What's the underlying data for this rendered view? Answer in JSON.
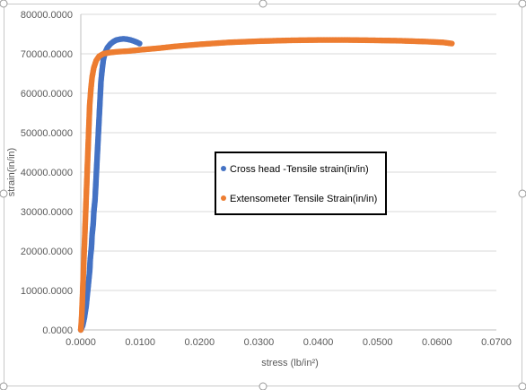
{
  "chart_data": {
    "type": "scatter",
    "title": "",
    "xlabel": "stress (lb/in²)",
    "ylabel": "strain(in/in)",
    "xlim": [
      0,
      0.07
    ],
    "ylim": [
      0,
      80000
    ],
    "x_ticks": [
      "0.0000",
      "0.0100",
      "0.0200",
      "0.0300",
      "0.0400",
      "0.0500",
      "0.0600",
      "0.0700"
    ],
    "y_ticks": [
      "0.0000",
      "10000.0000",
      "20000.0000",
      "30000.0000",
      "40000.0000",
      "50000.0000",
      "60000.0000",
      "70000.0000",
      "80000.0000"
    ],
    "grid": "horizontal",
    "legend_position": "center-right",
    "series": [
      {
        "name": "Cross head -Tensile strain(in/in)",
        "color": "#4472C4",
        "points": [
          [
            0.0,
            0
          ],
          [
            0.0003,
            1000
          ],
          [
            0.0006,
            3000
          ],
          [
            0.0009,
            6000
          ],
          [
            0.0011,
            9000
          ],
          [
            0.0013,
            12000
          ],
          [
            0.0015,
            15000
          ],
          [
            0.0016,
            18000
          ],
          [
            0.0018,
            21000
          ],
          [
            0.0019,
            24000
          ],
          [
            0.0021,
            27000
          ],
          [
            0.0022,
            30000
          ],
          [
            0.0024,
            33000
          ],
          [
            0.0025,
            36000
          ],
          [
            0.0026,
            39000
          ],
          [
            0.0027,
            42000
          ],
          [
            0.0028,
            45000
          ],
          [
            0.0029,
            48000
          ],
          [
            0.003,
            51000
          ],
          [
            0.0031,
            54000
          ],
          [
            0.0032,
            57000
          ],
          [
            0.0033,
            60000
          ],
          [
            0.0034,
            63000
          ],
          [
            0.0036,
            66000
          ],
          [
            0.0038,
            68500
          ],
          [
            0.0041,
            70300
          ],
          [
            0.0045,
            71600
          ],
          [
            0.005,
            72500
          ],
          [
            0.0055,
            73100
          ],
          [
            0.006,
            73500
          ],
          [
            0.0066,
            73700
          ],
          [
            0.0072,
            73800
          ],
          [
            0.0078,
            73700
          ],
          [
            0.0084,
            73500
          ],
          [
            0.009,
            73200
          ],
          [
            0.0095,
            72900
          ],
          [
            0.0099,
            72600
          ]
        ]
      },
      {
        "name": "Extensometer Tensile Strain(in/in)",
        "color": "#ED7D31",
        "points": [
          [
            0.0,
            0
          ],
          [
            0.0001,
            2000
          ],
          [
            0.0002,
            5000
          ],
          [
            0.0003,
            9000
          ],
          [
            0.0004,
            13000
          ],
          [
            0.0005,
            17000
          ],
          [
            0.0006,
            21000
          ],
          [
            0.0007,
            25000
          ],
          [
            0.0008,
            29000
          ],
          [
            0.0009,
            33000
          ],
          [
            0.001,
            37000
          ],
          [
            0.0011,
            41000
          ],
          [
            0.0012,
            45000
          ],
          [
            0.0013,
            49000
          ],
          [
            0.0014,
            53000
          ],
          [
            0.0015,
            57000
          ],
          [
            0.0017,
            61000
          ],
          [
            0.0019,
            64000
          ],
          [
            0.0022,
            66500
          ],
          [
            0.0026,
            68300
          ],
          [
            0.0031,
            69400
          ],
          [
            0.0038,
            70000
          ],
          [
            0.0048,
            70300
          ],
          [
            0.006,
            70500
          ],
          [
            0.008,
            70700
          ],
          [
            0.01,
            71000
          ],
          [
            0.013,
            71400
          ],
          [
            0.016,
            71900
          ],
          [
            0.02,
            72400
          ],
          [
            0.025,
            72900
          ],
          [
            0.03,
            73200
          ],
          [
            0.035,
            73400
          ],
          [
            0.04,
            73500
          ],
          [
            0.045,
            73500
          ],
          [
            0.05,
            73400
          ],
          [
            0.054,
            73300
          ],
          [
            0.058,
            73100
          ],
          [
            0.061,
            72900
          ],
          [
            0.0625,
            72600
          ]
        ]
      }
    ]
  }
}
